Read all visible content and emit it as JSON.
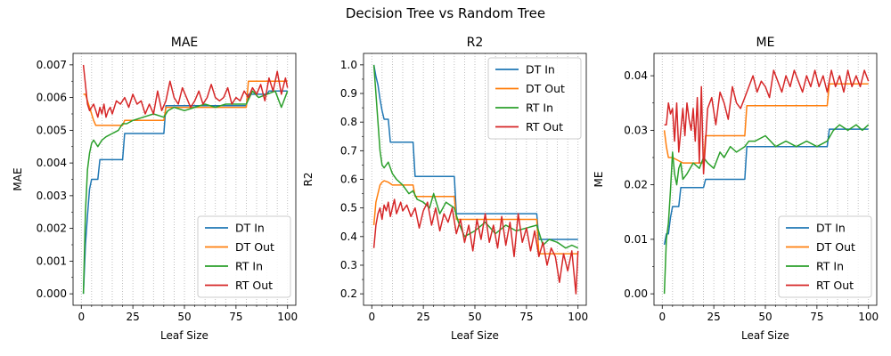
{
  "figure": {
    "title": "Decision Tree vs Random Tree"
  },
  "chart_data": [
    {
      "type": "line",
      "title": "MAE",
      "xlabel": "Leaf Size",
      "ylabel": "MAE",
      "xlim": [
        -4,
        104
      ],
      "ylim": [
        -0.00035,
        0.00735
      ],
      "xticks": [
        0,
        25,
        50,
        75,
        100
      ],
      "xtick_labels": [
        "0",
        "25",
        "50",
        "75",
        "100"
      ],
      "yticks": [
        0,
        0.001,
        0.002,
        0.003,
        0.004,
        0.005,
        0.006,
        0.007
      ],
      "ytick_labels": [
        "0.000",
        "0.001",
        "0.002",
        "0.003",
        "0.004",
        "0.005",
        "0.006",
        "0.007"
      ],
      "legend": "lower-right",
      "series": [
        {
          "name": "DT In",
          "color": "#1f77b4",
          "x": [
            1,
            2,
            3,
            4,
            5,
            6,
            7,
            8,
            9,
            10,
            20,
            21,
            40,
            41,
            80,
            81,
            90,
            91,
            100
          ],
          "y": [
            0.0,
            0.0015,
            0.0024,
            0.0032,
            0.0035,
            0.0035,
            0.0035,
            0.0035,
            0.0041,
            0.0041,
            0.0041,
            0.0049,
            0.0049,
            0.00575,
            0.00575,
            0.0061,
            0.0061,
            0.0062,
            0.0062
          ]
        },
        {
          "name": "DT Out",
          "color": "#ff7f0e",
          "x": [
            1,
            2,
            3,
            4,
            5,
            6,
            7,
            8,
            9,
            10,
            20,
            21,
            40,
            41,
            80,
            81,
            100
          ],
          "y": [
            0.0061,
            0.0061,
            0.0059,
            0.0057,
            0.0055,
            0.0053,
            0.00515,
            0.00515,
            0.00515,
            0.00515,
            0.00515,
            0.0053,
            0.0053,
            0.0057,
            0.0057,
            0.0065,
            0.0065
          ]
        },
        {
          "name": "RT In",
          "color": "#2ca02c",
          "x": [
            1,
            2,
            3,
            4,
            5,
            6,
            8,
            10,
            12,
            15,
            18,
            20,
            22,
            25,
            30,
            35,
            40,
            42,
            45,
            50,
            55,
            60,
            65,
            70,
            75,
            80,
            83,
            86,
            90,
            94,
            97,
            100
          ],
          "y": [
            0.0,
            0.0025,
            0.0038,
            0.0043,
            0.0046,
            0.0047,
            0.0045,
            0.0047,
            0.0048,
            0.0049,
            0.005,
            0.0052,
            0.0052,
            0.0053,
            0.0054,
            0.0055,
            0.0054,
            0.0056,
            0.0057,
            0.0056,
            0.0057,
            0.0058,
            0.0057,
            0.0058,
            0.0058,
            0.0058,
            0.0062,
            0.006,
            0.0061,
            0.0062,
            0.0057,
            0.0062
          ]
        },
        {
          "name": "RT Out",
          "color": "#d62728",
          "x": [
            1,
            2,
            3,
            4,
            5,
            6,
            7,
            8,
            9,
            10,
            11,
            12,
            13,
            14,
            15,
            17,
            19,
            21,
            23,
            25,
            27,
            29,
            31,
            33,
            35,
            37,
            39,
            41,
            43,
            45,
            47,
            49,
            51,
            53,
            55,
            57,
            59,
            61,
            63,
            65,
            67,
            69,
            71,
            73,
            75,
            77,
            79,
            81,
            83,
            85,
            87,
            89,
            91,
            93,
            95,
            97,
            99,
            100
          ],
          "y": [
            0.007,
            0.0064,
            0.0058,
            0.0056,
            0.0057,
            0.0058,
            0.0056,
            0.0054,
            0.0057,
            0.0055,
            0.0058,
            0.0054,
            0.0056,
            0.0057,
            0.0055,
            0.0059,
            0.0058,
            0.006,
            0.0057,
            0.0061,
            0.0058,
            0.0059,
            0.0055,
            0.0058,
            0.0055,
            0.0062,
            0.0056,
            0.0059,
            0.0065,
            0.006,
            0.0058,
            0.0063,
            0.006,
            0.0057,
            0.0059,
            0.0062,
            0.0058,
            0.006,
            0.0064,
            0.006,
            0.0059,
            0.006,
            0.0063,
            0.0058,
            0.006,
            0.0059,
            0.0062,
            0.006,
            0.0063,
            0.0061,
            0.0064,
            0.0059,
            0.0066,
            0.0062,
            0.0068,
            0.0061,
            0.0066,
            0.0063
          ]
        }
      ]
    },
    {
      "type": "line",
      "title": "R2",
      "xlabel": "Leaf Size",
      "ylabel": "R2",
      "xlim": [
        -4,
        104
      ],
      "ylim": [
        0.16,
        1.04
      ],
      "xticks": [
        0,
        25,
        50,
        75,
        100
      ],
      "xtick_labels": [
        "0",
        "25",
        "50",
        "75",
        "100"
      ],
      "yticks": [
        0.2,
        0.3,
        0.4,
        0.5,
        0.6,
        0.7,
        0.8,
        0.9,
        1.0
      ],
      "ytick_labels": [
        "0.2",
        "0.3",
        "0.4",
        "0.5",
        "0.6",
        "0.7",
        "0.8",
        "0.9",
        "1.0"
      ],
      "legend": "upper-right",
      "series": [
        {
          "name": "DT In",
          "color": "#1f77b4",
          "x": [
            1,
            2,
            3,
            4,
            5,
            6,
            7,
            8,
            9,
            10,
            20,
            21,
            40,
            41,
            80,
            81,
            100
          ],
          "y": [
            1.0,
            0.96,
            0.93,
            0.88,
            0.84,
            0.81,
            0.81,
            0.81,
            0.73,
            0.73,
            0.73,
            0.61,
            0.61,
            0.48,
            0.48,
            0.39,
            0.39
          ]
        },
        {
          "name": "DT Out",
          "color": "#ff7f0e",
          "x": [
            1,
            2,
            3,
            4,
            5,
            6,
            8,
            10,
            20,
            21,
            40,
            41,
            80,
            81,
            100
          ],
          "y": [
            0.44,
            0.52,
            0.55,
            0.58,
            0.59,
            0.595,
            0.59,
            0.58,
            0.58,
            0.54,
            0.54,
            0.46,
            0.46,
            0.34,
            0.34
          ]
        },
        {
          "name": "RT In",
          "color": "#2ca02c",
          "x": [
            1,
            2,
            3,
            4,
            5,
            6,
            8,
            10,
            12,
            15,
            18,
            20,
            22,
            25,
            28,
            30,
            33,
            36,
            40,
            42,
            45,
            50,
            55,
            60,
            65,
            70,
            75,
            80,
            83,
            86,
            90,
            94,
            97,
            100
          ],
          "y": [
            1.0,
            0.9,
            0.8,
            0.7,
            0.65,
            0.64,
            0.66,
            0.62,
            0.6,
            0.58,
            0.55,
            0.56,
            0.53,
            0.52,
            0.5,
            0.55,
            0.48,
            0.52,
            0.5,
            0.45,
            0.4,
            0.42,
            0.45,
            0.41,
            0.44,
            0.42,
            0.43,
            0.44,
            0.37,
            0.39,
            0.38,
            0.36,
            0.37,
            0.36
          ]
        },
        {
          "name": "RT Out",
          "color": "#d62728",
          "x": [
            1,
            2,
            3,
            4,
            5,
            6,
            7,
            8,
            9,
            10,
            11,
            12,
            13,
            14,
            15,
            17,
            19,
            21,
            23,
            25,
            27,
            29,
            31,
            33,
            35,
            37,
            39,
            41,
            43,
            45,
            47,
            49,
            51,
            53,
            55,
            57,
            59,
            61,
            63,
            65,
            67,
            69,
            71,
            73,
            75,
            77,
            79,
            81,
            83,
            85,
            87,
            89,
            91,
            93,
            95,
            97,
            99,
            100
          ],
          "y": [
            0.36,
            0.44,
            0.48,
            0.5,
            0.46,
            0.51,
            0.49,
            0.52,
            0.47,
            0.5,
            0.53,
            0.48,
            0.5,
            0.52,
            0.49,
            0.51,
            0.47,
            0.5,
            0.43,
            0.49,
            0.52,
            0.44,
            0.5,
            0.42,
            0.48,
            0.45,
            0.5,
            0.41,
            0.46,
            0.38,
            0.44,
            0.35,
            0.46,
            0.39,
            0.48,
            0.38,
            0.44,
            0.36,
            0.47,
            0.37,
            0.45,
            0.33,
            0.48,
            0.38,
            0.43,
            0.35,
            0.42,
            0.33,
            0.38,
            0.3,
            0.36,
            0.33,
            0.24,
            0.34,
            0.28,
            0.35,
            0.2,
            0.35
          ]
        }
      ]
    },
    {
      "type": "line",
      "title": "ME",
      "xlabel": "Leaf Size",
      "ylabel": "ME",
      "xlim": [
        -4,
        104
      ],
      "ylim": [
        -0.0021,
        0.0441
      ],
      "xticks": [
        0,
        25,
        50,
        75,
        100
      ],
      "xtick_labels": [
        "0",
        "25",
        "50",
        "75",
        "100"
      ],
      "yticks": [
        0,
        0.01,
        0.02,
        0.03,
        0.04
      ],
      "ytick_labels": [
        "0.00",
        "0.01",
        "0.02",
        "0.03",
        "0.04"
      ],
      "legend": "lower-right",
      "series": [
        {
          "name": "DT In",
          "color": "#1f77b4",
          "x": [
            1,
            2,
            3,
            4,
            5,
            6,
            7,
            8,
            9,
            10,
            20,
            21,
            40,
            41,
            80,
            81,
            100
          ],
          "y": [
            0.009,
            0.011,
            0.011,
            0.014,
            0.016,
            0.016,
            0.016,
            0.016,
            0.0195,
            0.0195,
            0.0195,
            0.021,
            0.021,
            0.027,
            0.027,
            0.0302,
            0.0302
          ]
        },
        {
          "name": "DT Out",
          "color": "#ff7f0e",
          "x": [
            1,
            2,
            3,
            4,
            5,
            10,
            20,
            21,
            40,
            41,
            80,
            81,
            100
          ],
          "y": [
            0.03,
            0.027,
            0.025,
            0.025,
            0.025,
            0.024,
            0.024,
            0.029,
            0.029,
            0.0345,
            0.0345,
            0.0385,
            0.0385
          ]
        },
        {
          "name": "RT In",
          "color": "#2ca02c",
          "x": [
            1,
            2,
            3,
            4,
            5,
            6,
            7,
            8,
            9,
            10,
            12,
            15,
            18,
            20,
            22,
            25,
            28,
            30,
            33,
            36,
            40,
            42,
            45,
            50,
            55,
            60,
            65,
            70,
            75,
            80,
            83,
            86,
            90,
            94,
            97,
            100
          ],
          "y": [
            0.0,
            0.01,
            0.013,
            0.019,
            0.026,
            0.022,
            0.02,
            0.023,
            0.024,
            0.021,
            0.022,
            0.024,
            0.023,
            0.025,
            0.024,
            0.023,
            0.026,
            0.025,
            0.027,
            0.026,
            0.027,
            0.028,
            0.028,
            0.029,
            0.027,
            0.028,
            0.027,
            0.028,
            0.027,
            0.028,
            0.03,
            0.031,
            0.03,
            0.031,
            0.03,
            0.031
          ]
        },
        {
          "name": "RT Out",
          "color": "#d62728",
          "x": [
            1,
            2,
            3,
            4,
            5,
            6,
            7,
            8,
            9,
            10,
            11,
            12,
            13,
            14,
            15,
            16,
            17,
            18,
            19,
            20,
            22,
            24,
            26,
            28,
            30,
            32,
            34,
            36,
            38,
            40,
            42,
            44,
            46,
            48,
            50,
            52,
            54,
            56,
            58,
            60,
            62,
            64,
            66,
            68,
            70,
            72,
            74,
            76,
            78,
            80,
            82,
            84,
            86,
            88,
            90,
            92,
            94,
            96,
            98,
            100
          ],
          "y": [
            0.031,
            0.031,
            0.035,
            0.033,
            0.034,
            0.028,
            0.035,
            0.026,
            0.03,
            0.034,
            0.029,
            0.035,
            0.032,
            0.03,
            0.034,
            0.028,
            0.036,
            0.024,
            0.038,
            0.022,
            0.034,
            0.036,
            0.031,
            0.037,
            0.035,
            0.032,
            0.038,
            0.035,
            0.034,
            0.036,
            0.038,
            0.04,
            0.037,
            0.039,
            0.038,
            0.036,
            0.041,
            0.039,
            0.037,
            0.04,
            0.038,
            0.041,
            0.039,
            0.037,
            0.04,
            0.038,
            0.041,
            0.038,
            0.04,
            0.037,
            0.041,
            0.038,
            0.04,
            0.037,
            0.041,
            0.038,
            0.04,
            0.038,
            0.041,
            0.039
          ]
        }
      ]
    }
  ]
}
